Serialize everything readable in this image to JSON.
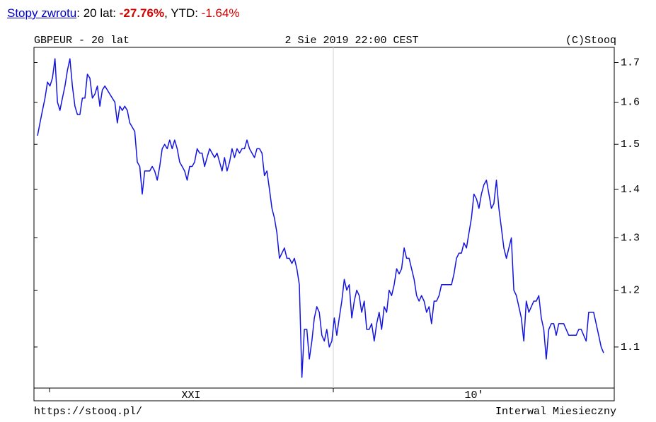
{
  "header": {
    "link": "Stopy zwrotu",
    "period": ": 20 lat: ",
    "return_20y": "-27.76%",
    "ytd_label": ", YTD: ",
    "return_ytd": "-1.64%"
  },
  "chart_data": {
    "type": "line",
    "title": "GBPEUR - 20 lat",
    "subtitle": "2 Sie 2019 22:00 CEST",
    "credit": "(C)Stooq",
    "source": "https://stooq.pl/",
    "interval": "Interwal Miesieczny",
    "x_labels": [
      "XXI",
      "10'"
    ],
    "log_scale": true,
    "ylim": [
      1.033,
      1.74
    ],
    "yticks": [
      1.1,
      1.2,
      1.3,
      1.4,
      1.5,
      1.6,
      1.7
    ],
    "series": [
      {
        "name": "GBPEUR",
        "color": "#1414e0",
        "values": [
          1.52,
          1.55,
          1.58,
          1.61,
          1.65,
          1.64,
          1.66,
          1.71,
          1.6,
          1.58,
          1.61,
          1.64,
          1.68,
          1.71,
          1.64,
          1.59,
          1.57,
          1.57,
          1.61,
          1.61,
          1.67,
          1.66,
          1.61,
          1.62,
          1.64,
          1.59,
          1.63,
          1.64,
          1.63,
          1.62,
          1.61,
          1.6,
          1.55,
          1.59,
          1.58,
          1.59,
          1.58,
          1.55,
          1.54,
          1.53,
          1.46,
          1.45,
          1.39,
          1.44,
          1.44,
          1.44,
          1.45,
          1.44,
          1.42,
          1.45,
          1.49,
          1.5,
          1.49,
          1.51,
          1.49,
          1.51,
          1.49,
          1.46,
          1.45,
          1.44,
          1.42,
          1.45,
          1.45,
          1.46,
          1.49,
          1.48,
          1.48,
          1.45,
          1.47,
          1.49,
          1.48,
          1.47,
          1.48,
          1.46,
          1.44,
          1.47,
          1.44,
          1.46,
          1.49,
          1.47,
          1.49,
          1.48,
          1.49,
          1.49,
          1.51,
          1.49,
          1.48,
          1.47,
          1.49,
          1.49,
          1.48,
          1.43,
          1.44,
          1.4,
          1.36,
          1.34,
          1.31,
          1.26,
          1.27,
          1.28,
          1.26,
          1.26,
          1.25,
          1.26,
          1.24,
          1.21,
          1.05,
          1.13,
          1.13,
          1.08,
          1.11,
          1.15,
          1.17,
          1.16,
          1.12,
          1.11,
          1.13,
          1.1,
          1.11,
          1.15,
          1.12,
          1.15,
          1.18,
          1.22,
          1.2,
          1.21,
          1.15,
          1.18,
          1.2,
          1.19,
          1.16,
          1.18,
          1.13,
          1.13,
          1.14,
          1.11,
          1.14,
          1.16,
          1.13,
          1.17,
          1.16,
          1.2,
          1.19,
          1.21,
          1.24,
          1.23,
          1.24,
          1.28,
          1.26,
          1.26,
          1.24,
          1.22,
          1.19,
          1.18,
          1.19,
          1.18,
          1.16,
          1.17,
          1.14,
          1.18,
          1.18,
          1.19,
          1.21,
          1.21,
          1.21,
          1.21,
          1.21,
          1.23,
          1.26,
          1.27,
          1.27,
          1.29,
          1.28,
          1.31,
          1.34,
          1.39,
          1.38,
          1.36,
          1.39,
          1.41,
          1.42,
          1.39,
          1.36,
          1.37,
          1.42,
          1.36,
          1.32,
          1.28,
          1.26,
          1.28,
          1.3,
          1.2,
          1.19,
          1.17,
          1.15,
          1.11,
          1.18,
          1.16,
          1.17,
          1.18,
          1.18,
          1.19,
          1.15,
          1.13,
          1.08,
          1.13,
          1.14,
          1.14,
          1.12,
          1.14,
          1.14,
          1.14,
          1.13,
          1.12,
          1.12,
          1.12,
          1.12,
          1.13,
          1.13,
          1.12,
          1.11,
          1.16,
          1.16,
          1.16,
          1.14,
          1.12,
          1.1,
          1.09
        ]
      }
    ]
  }
}
